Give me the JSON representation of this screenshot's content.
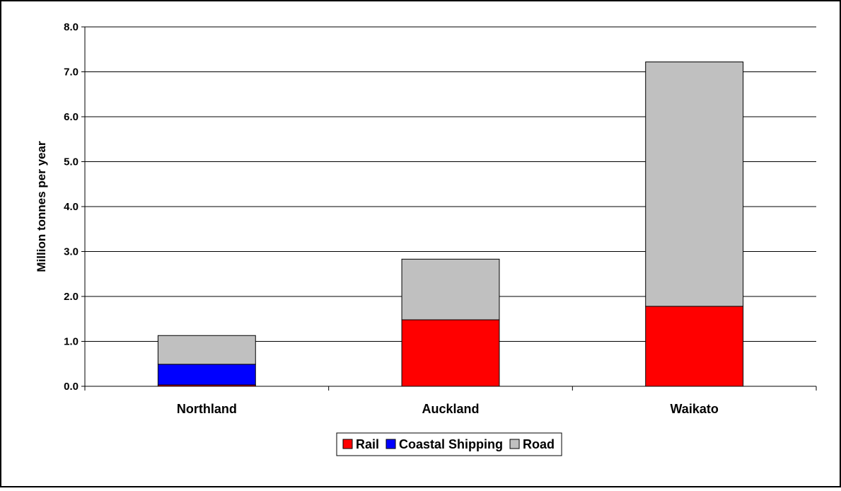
{
  "chart_data": {
    "type": "bar",
    "stacked": true,
    "title": "",
    "xlabel": "",
    "ylabel": "Million tonnes per year",
    "ylim": [
      0,
      8
    ],
    "yticks": [
      "0.0",
      "1.0",
      "2.0",
      "3.0",
      "4.0",
      "5.0",
      "6.0",
      "7.0",
      "8.0"
    ],
    "categories": [
      "Northland",
      "Auckland",
      "Waikato"
    ],
    "grid": "horizontal",
    "legend_position": "bottom-center",
    "series": [
      {
        "name": "Rail",
        "color": "#ff0000",
        "values": [
          0.03,
          1.48,
          1.78
        ]
      },
      {
        "name": "Coastal Shipping",
        "color": "#0000ff",
        "values": [
          0.46,
          0.0,
          0.0
        ]
      },
      {
        "name": "Road",
        "color": "#c0c0c0",
        "values": [
          0.64,
          1.35,
          5.44
        ]
      }
    ]
  }
}
